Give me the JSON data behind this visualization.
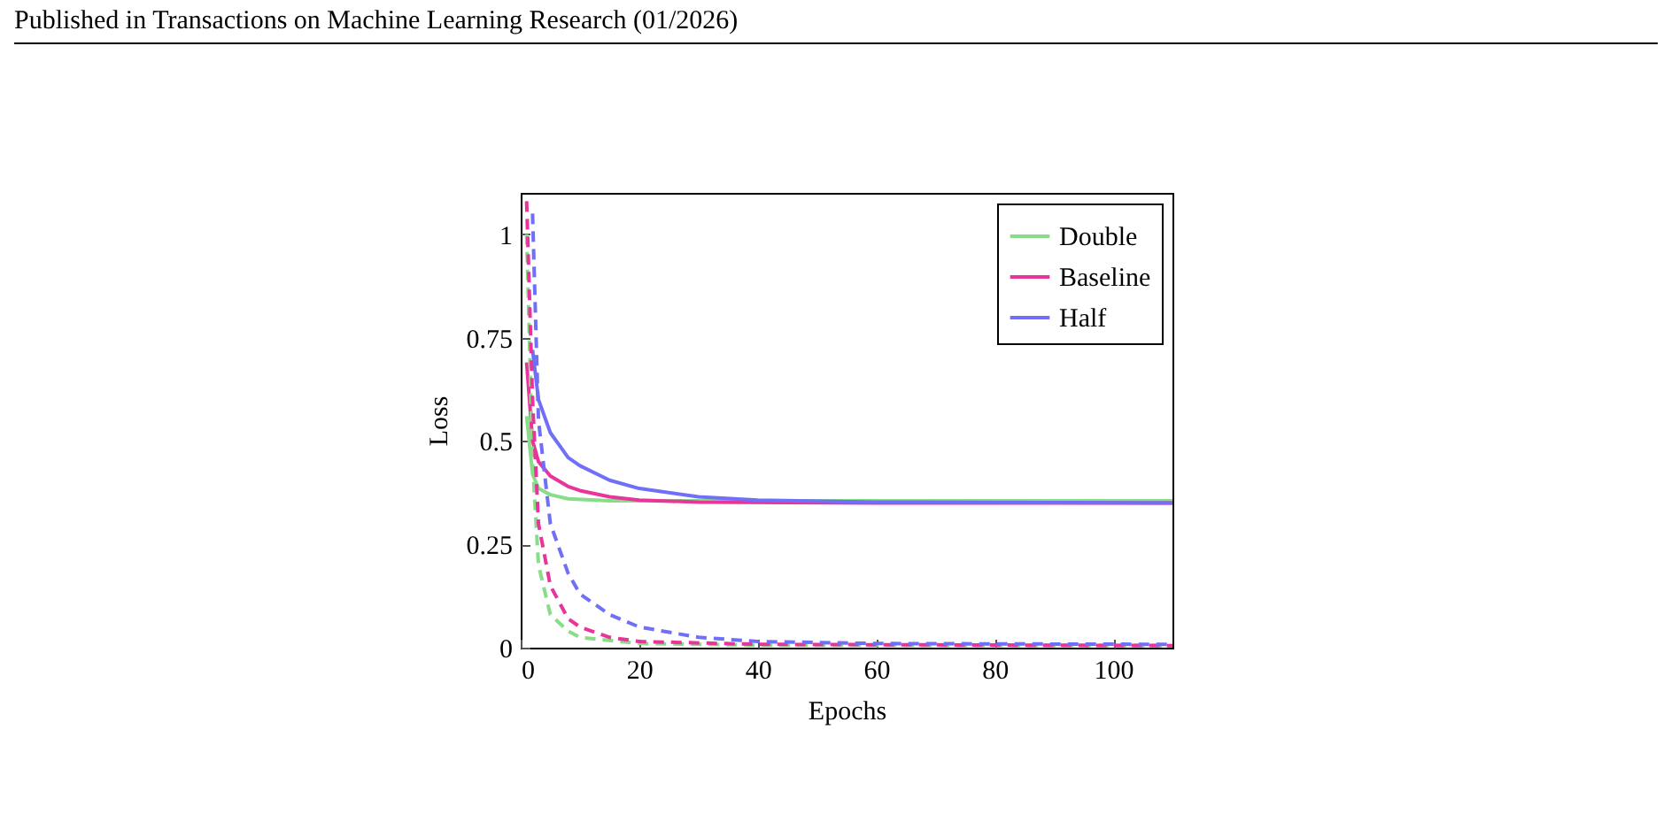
{
  "chart_data": {
    "type": "line",
    "xlabel": "Epochs",
    "ylabel": "Loss",
    "annotations": [
      "Published in Transactions on Machine Learning Research (01/2026)"
    ],
    "xlim": [
      0,
      110
    ],
    "xticks": [
      0,
      20,
      40,
      60,
      80,
      100
    ],
    "ylim": [
      0,
      1.1
    ],
    "yticks": [
      0,
      0.25,
      0.5,
      0.75,
      1
    ],
    "grid": false,
    "legend": "top right",
    "marker": "none",
    "series": [
      {
        "name": "Double",
        "color": "#88dd88",
        "line_style": "solid",
        "x": [
          1,
          2,
          3,
          5,
          8,
          15,
          30,
          60,
          110
        ],
        "values": [
          0.56,
          0.42,
          0.385,
          0.37,
          0.36,
          0.355,
          0.355,
          0.355,
          0.355
        ]
      },
      {
        "name": "Baseline",
        "color": "#e8359a",
        "line_style": "solid",
        "x": [
          1,
          2,
          3,
          5,
          8,
          10,
          15,
          20,
          30,
          60,
          110
        ],
        "values": [
          0.69,
          0.5,
          0.45,
          0.415,
          0.39,
          0.38,
          0.365,
          0.357,
          0.352,
          0.35,
          0.35
        ]
      },
      {
        "name": "Half",
        "color": "#6f6ff8",
        "line_style": "solid",
        "x": [
          2,
          3,
          5,
          8,
          10,
          15,
          20,
          30,
          40,
          60,
          110
        ],
        "values": [
          0.72,
          0.6,
          0.52,
          0.46,
          0.44,
          0.405,
          0.385,
          0.365,
          0.357,
          0.352,
          0.35
        ]
      },
      {
        "color": "#88dd88",
        "line_style": "dashed",
        "x": [
          1,
          2,
          3,
          5,
          8,
          10,
          20,
          40,
          110
        ],
        "values": [
          1.0,
          0.45,
          0.2,
          0.08,
          0.04,
          0.025,
          0.01,
          0.006,
          0.005
        ]
      },
      {
        "color": "#e8359a",
        "line_style": "dashed",
        "x": [
          1,
          2,
          3,
          5,
          8,
          10,
          15,
          20,
          40,
          110
        ],
        "values": [
          1.08,
          0.6,
          0.3,
          0.15,
          0.07,
          0.05,
          0.025,
          0.015,
          0.008,
          0.005
        ]
      },
      {
        "color": "#6f6ff8",
        "line_style": "dashed",
        "x": [
          2,
          3,
          5,
          8,
          10,
          15,
          20,
          30,
          40,
          60,
          110
        ],
        "values": [
          1.05,
          0.55,
          0.3,
          0.18,
          0.13,
          0.08,
          0.05,
          0.025,
          0.015,
          0.01,
          0.008
        ]
      }
    ]
  }
}
